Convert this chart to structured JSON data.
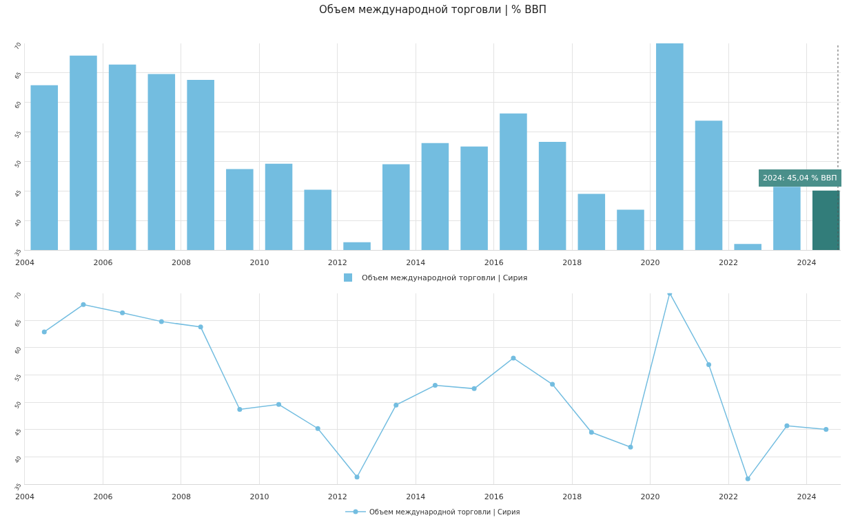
{
  "chart_data": [
    {
      "type": "bar",
      "title": "Объем международной торговли | % ВВП",
      "x": [
        "2004-07",
        "2005-07",
        "2006-07",
        "2007-07",
        "2008-07",
        "2009-07",
        "2010-07",
        "2011-07",
        "2012-07",
        "2013-07",
        "2014-07",
        "2015-07",
        "2016-07",
        "2017-07",
        "2018-07",
        "2019-07",
        "2020-07",
        "2021-07",
        "2022-07",
        "2023-07",
        "2024-07"
      ],
      "series": [
        {
          "name": "Объем международной торговли | Сирия",
          "color": "#73bde0",
          "colors": [
            "#73bde0",
            "#73bde0",
            "#73bde0",
            "#73bde0",
            "#73bde0",
            "#73bde0",
            "#73bde0",
            "#73bde0",
            "#73bde0",
            "#73bde0",
            "#73bde0",
            "#73bde0",
            "#73bde0",
            "#73bde0",
            "#73bde0",
            "#73bde0",
            "#73bde0",
            "#73bde0",
            "#73bde0",
            "#73bde0",
            "#327d7a"
          ],
          "values": [
            62.9,
            67.9,
            66.4,
            64.8,
            63.8,
            48.7,
            49.6,
            45.2,
            36.3,
            49.5,
            53.1,
            52.5,
            58.1,
            53.3,
            44.5,
            41.8,
            70,
            56.9,
            36.0,
            45.7,
            45.04
          ]
        }
      ],
      "xlim": [
        "2004-01-01",
        "2024-11-15"
      ],
      "xticks": [
        {
          "value": "2004-01-01",
          "label": "2004"
        },
        {
          "value": "2006-01-01",
          "label": "2006"
        },
        {
          "value": "2008-01-01",
          "label": "2008"
        },
        {
          "value": "2010-01-01",
          "label": "2010"
        },
        {
          "value": "2012-01-01",
          "label": "2012"
        },
        {
          "value": "2014-01-01",
          "label": "2014"
        },
        {
          "value": "2016-01-01",
          "label": "2016"
        },
        {
          "value": "2018-01-01",
          "label": "2018"
        },
        {
          "value": "2020-01-01",
          "label": "2020"
        },
        {
          "value": "2022-01-01",
          "label": "2022"
        },
        {
          "value": "2024-01-01",
          "label": "2024"
        }
      ],
      "ylim": [
        35,
        70
      ],
      "yticks": [
        35,
        40,
        45,
        50,
        55,
        60,
        65,
        70
      ],
      "grid": true,
      "legend": "bottom",
      "ref_lines": [
        {
          "axis": "x",
          "value": "2024-10-20",
          "line_style": "dotted",
          "color": "#555555"
        }
      ],
      "annotations": [
        {
          "text": "2024: 45,04 % ВВП",
          "x": "2024-07",
          "y": 45.04
        }
      ]
    },
    {
      "type": "line",
      "x": [
        "2004-07",
        "2005-07",
        "2006-07",
        "2007-07",
        "2008-07",
        "2009-07",
        "2010-07",
        "2011-07",
        "2012-07",
        "2013-07",
        "2014-07",
        "2015-07",
        "2016-07",
        "2017-07",
        "2018-07",
        "2019-07",
        "2020-07",
        "2021-07",
        "2022-07",
        "2023-07",
        "2024-07"
      ],
      "series": [
        {
          "name": "Объем международной торговли | Сирия",
          "color": "#73bde0",
          "values": [
            62.9,
            67.9,
            66.4,
            64.8,
            63.8,
            48.7,
            49.6,
            45.2,
            36.3,
            49.5,
            53.1,
            52.5,
            58.1,
            53.3,
            44.5,
            41.8,
            70,
            56.9,
            36.0,
            45.7,
            45.04
          ]
        }
      ],
      "xlim": [
        "2004-01-01",
        "2024-11-15"
      ],
      "xticks": [
        {
          "value": "2004-01-01",
          "label": "2004"
        },
        {
          "value": "2006-01-01",
          "label": "2006"
        },
        {
          "value": "2008-01-01",
          "label": "2008"
        },
        {
          "value": "2010-01-01",
          "label": "2010"
        },
        {
          "value": "2012-01-01",
          "label": "2012"
        },
        {
          "value": "2014-01-01",
          "label": "2014"
        },
        {
          "value": "2016-01-01",
          "label": "2016"
        },
        {
          "value": "2018-01-01",
          "label": "2018"
        },
        {
          "value": "2020-01-01",
          "label": "2020"
        },
        {
          "value": "2022-01-01",
          "label": "2022"
        },
        {
          "value": "2024-01-01",
          "label": "2024"
        }
      ],
      "ylim": [
        35,
        70
      ],
      "yticks": [
        35,
        40,
        45,
        50,
        55,
        60,
        65,
        70
      ],
      "grid": true,
      "legend": "bottom",
      "marker": "circle",
      "line_style": "solid"
    }
  ]
}
